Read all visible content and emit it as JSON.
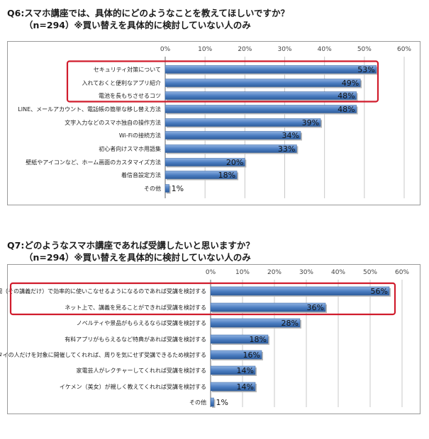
{
  "chart_data": [
    {
      "type": "bar",
      "orientation": "horizontal",
      "title": "Q6:スマホ講座では、具体的にどのようなことを教えてほしいですか？",
      "subtitle": "（n=294）※買い替えを具体的に検討していない人のみ",
      "categories": [
        "セキュリティ対策について",
        "入れておくと便利なアプリ紹介",
        "電池を長もちさせるコツ",
        "LINE、メールアカウント、電話帳の簡単な移し替え方法",
        "文字入力などのスマホ独自の操作方法",
        "Wi-Fiの接続方法",
        "初心者向けスマホ用語集",
        "壁紙やアイコンなど、ホーム画面のカスタマイズ方法",
        "着信音設定方法",
        "その他"
      ],
      "values": [
        53,
        49,
        48,
        48,
        39,
        34,
        33,
        20,
        18,
        1
      ],
      "value_labels": [
        "53%",
        "49%",
        "48%",
        "48%",
        "39%",
        "34%",
        "33%",
        "20%",
        "18%",
        "1%"
      ],
      "tick_labels": [
        "0%",
        "10%",
        "20%",
        "30%",
        "40%",
        "50%",
        "60%"
      ],
      "xlim": [
        0,
        60
      ],
      "grid": true,
      "highlighted_categories": [
        0,
        1,
        2
      ],
      "bar_color": "#4a7cc0",
      "highlight_color": "#d01c2c"
    },
    {
      "type": "bar",
      "orientation": "horizontal",
      "title": "Q7:どのようなスマホ講座であれば受講したいと思いますか？",
      "subtitle": "（n=294）※買い替えを具体的に検討していない人のみ",
      "categories": [
        "短時間（その講義だけ）で効率的に使いこなせるようになるのであれば受講を検討する",
        "ネット上で、講義を見ることができれば受講を検討する",
        "ノベルティや景品がもらえるならば受講を検討する",
        "有料アプリがもらえるなど特典があれば受講を検討する",
        "ケータイの人だけを対象に開催してくれれば、周りを気にせず受講できるため検討する",
        "家電芸人がレクチャーしてくれれば受講を検討する",
        "イケメン（美女）が親しく教えてくれれば受講を検討する",
        "その他"
      ],
      "values": [
        56,
        36,
        28,
        18,
        16,
        14,
        14,
        1
      ],
      "value_labels": [
        "56%",
        "36%",
        "28%",
        "18%",
        "16%",
        "14%",
        "14%",
        "1%"
      ],
      "tick_labels": [
        "0%",
        "10%",
        "20%",
        "30%",
        "40%",
        "50%",
        "60%"
      ],
      "xlim": [
        0,
        60
      ],
      "grid": true,
      "highlighted_categories": [
        0,
        1
      ],
      "bar_color": "#4a7cc0",
      "highlight_color": "#d01c2c"
    }
  ]
}
